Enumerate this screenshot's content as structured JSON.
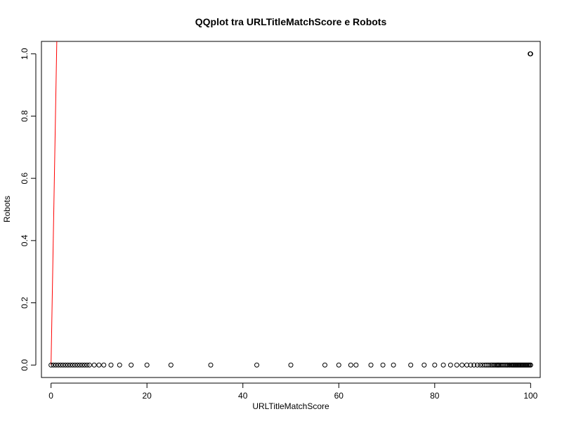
{
  "chart_data": {
    "type": "scatter",
    "title": "QQplot tra URLTitleMatchScore e Robots",
    "xlabel": "URLTitleMatchScore",
    "ylabel": "Robots",
    "xlim": [
      -2,
      102
    ],
    "ylim": [
      -0.04,
      1.04
    ],
    "xticks": [
      0,
      20,
      40,
      60,
      80,
      100
    ],
    "yticks": [
      0.0,
      0.2,
      0.4,
      0.6,
      0.8,
      1.0
    ],
    "xtick_labels": [
      "0",
      "20",
      "40",
      "60",
      "80",
      "100"
    ],
    "ytick_labels": [
      "0.0",
      "0.2",
      "0.4",
      "0.6",
      "0.8",
      "1.0"
    ],
    "grid": false,
    "legend": "none",
    "point_color": "#000000",
    "line_color": "#ff0000",
    "reference_line": {
      "x": [
        0,
        1.2
      ],
      "y": [
        0,
        1.04
      ]
    },
    "series": [
      {
        "x": [
          0,
          0.5,
          1,
          1.5,
          2,
          2.5,
          3,
          3.5,
          4,
          4.5,
          5,
          5.5,
          6,
          6.5,
          7,
          7.5,
          8,
          9,
          10,
          11,
          12.5,
          14.3,
          16.7,
          20,
          25,
          33.3,
          42.9,
          50,
          57.1,
          60,
          62.5,
          63.6,
          66.7,
          69.2,
          71.4,
          75,
          77.8,
          80,
          81.8,
          83.3,
          84.6,
          85.7,
          86.7,
          87.5,
          88.2,
          88.9,
          89.5,
          90,
          90.5,
          90.9,
          91.3,
          91.7,
          92,
          92.3,
          92.6,
          92.9,
          93.1,
          93.3,
          93.5,
          93.8,
          94.1,
          94.4,
          94.7,
          95,
          95.2,
          95.5,
          95.7,
          96,
          96.2,
          96.4,
          96.6,
          96.8,
          97,
          97.2,
          97.4,
          97.6,
          97.8,
          98,
          98.2,
          98.4,
          98.6,
          98.8,
          99,
          99.2,
          99.4,
          99.6,
          99.8,
          100
        ],
        "y": [
          0,
          0,
          0,
          0,
          0,
          0,
          0,
          0,
          0,
          0,
          0,
          0,
          0,
          0,
          0,
          0,
          0,
          0,
          0,
          0,
          0,
          0,
          0,
          0,
          0,
          0,
          0,
          0,
          0,
          0,
          0,
          0,
          0,
          0,
          0,
          0,
          0,
          0,
          0,
          0,
          0,
          0,
          0,
          0,
          0,
          0,
          0,
          0,
          0,
          0,
          0,
          0,
          0,
          0,
          0,
          0,
          0,
          0,
          0,
          0,
          0,
          0,
          0,
          0,
          0,
          0,
          0,
          0,
          0,
          0,
          0,
          0,
          0,
          0,
          0,
          0,
          0,
          0,
          0,
          0,
          0,
          0,
          0,
          0,
          0,
          0,
          0,
          0
        ]
      },
      {
        "x": [
          99.9,
          100
        ],
        "y": [
          1,
          1
        ]
      }
    ]
  }
}
